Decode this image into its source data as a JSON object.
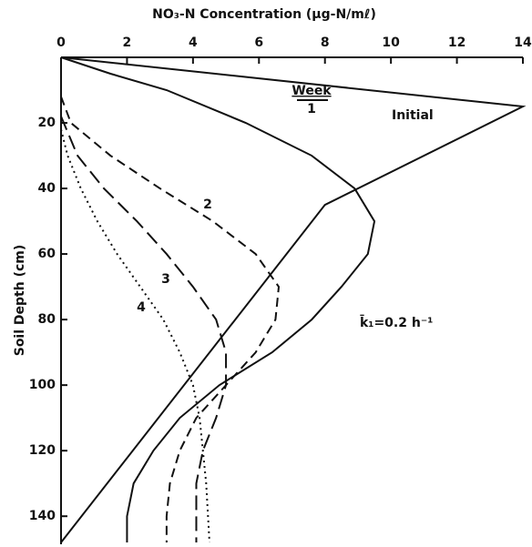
{
  "chart_data": {
    "type": "line",
    "title": "NO₃-N Concentration (µg-N/mℓ)",
    "y_label": "Soil Depth (cm)",
    "legend_title": "Week",
    "annotation": "k̄₁=0.2 h⁻¹",
    "xlim": [
      0,
      14
    ],
    "xticks": [
      0,
      2,
      4,
      6,
      8,
      10,
      12,
      14
    ],
    "ylim": [
      0,
      148
    ],
    "yticks": [
      20,
      40,
      60,
      80,
      100,
      120,
      140
    ],
    "y_inverted": true,
    "x_axis_top": true,
    "series": [
      {
        "name": "Initial",
        "color": "#111",
        "style": "solid",
        "x": [
          0,
          14,
          8,
          0
        ],
        "y": [
          0,
          15,
          45,
          148
        ]
      },
      {
        "name": "1",
        "color": "#111",
        "style": "solid",
        "x": [
          0,
          1.5,
          3.2,
          5.6,
          7.6,
          8.9,
          9.5,
          9.3,
          8.5,
          7.6,
          6.4,
          4.8,
          3.6,
          2.8,
          2.2,
          2.0,
          2.0
        ],
        "y": [
          0,
          5,
          10,
          20,
          30,
          40,
          50,
          60,
          70,
          80,
          90,
          100,
          110,
          120,
          130,
          140,
          148
        ]
      },
      {
        "name": "2",
        "color": "#111",
        "style": "dashed",
        "x": [
          0,
          0.3,
          1.5,
          3.0,
          4.6,
          5.9,
          6.6,
          6.5,
          5.9,
          5.0,
          4.1,
          3.6,
          3.3,
          3.2,
          3.2
        ],
        "y": [
          12,
          20,
          30,
          40,
          50,
          60,
          70,
          80,
          90,
          100,
          110,
          120,
          130,
          140,
          148
        ]
      },
      {
        "name": "3",
        "color": "#111",
        "style": "longdash",
        "x": [
          0,
          0.5,
          1.3,
          2.3,
          3.2,
          4.0,
          4.7,
          5.0,
          5.0,
          4.7,
          4.3,
          4.1,
          4.1
        ],
        "y": [
          18,
          30,
          40,
          50,
          60,
          70,
          80,
          90,
          100,
          110,
          120,
          130,
          148
        ]
      },
      {
        "name": "4",
        "color": "#111",
        "style": "dotted",
        "x": [
          0,
          0.2,
          0.6,
          1.1,
          1.7,
          2.4,
          3.1,
          3.6,
          4.0,
          4.2,
          4.3,
          4.4,
          4.5
        ],
        "y": [
          22,
          30,
          40,
          50,
          60,
          70,
          80,
          90,
          100,
          110,
          120,
          130,
          148
        ]
      }
    ]
  }
}
